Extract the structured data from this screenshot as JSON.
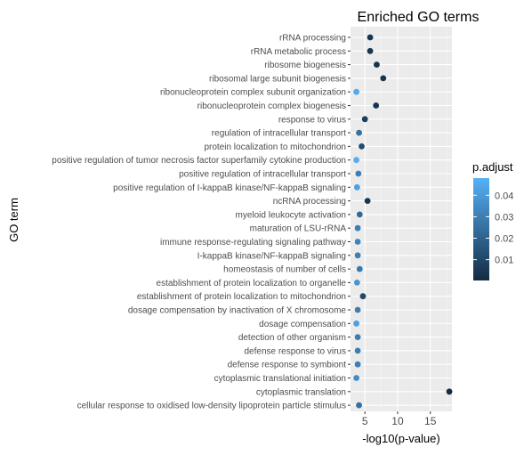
{
  "chart_data": {
    "type": "scatter",
    "title": "Enriched GO terms",
    "xlabel": "-log10(p-value)",
    "ylabel": "GO term",
    "xlim": [
      2.8,
      18.3
    ],
    "x_ticks": [
      5,
      10,
      15
    ],
    "grid": true,
    "legend": {
      "title": "p.adjust",
      "placement": "right",
      "ticks": [
        0.04,
        0.03,
        0.02,
        0.01
      ],
      "range": [
        0.0003,
        0.048
      ],
      "color_low": "#132B43",
      "color_high": "#56B1F7"
    },
    "points": [
      {
        "term": "rRNA processing",
        "x": 5.8,
        "p_adjust": 0.004
      },
      {
        "term": "rRNA metabolic process",
        "x": 5.8,
        "p_adjust": 0.004
      },
      {
        "term": "ribosome biogenesis",
        "x": 6.8,
        "p_adjust": 0.003
      },
      {
        "term": "ribosomal large subunit biogenesis",
        "x": 7.8,
        "p_adjust": 0.003
      },
      {
        "term": "ribonucleoprotein complex subunit organization",
        "x": 3.7,
        "p_adjust": 0.045
      },
      {
        "term": "ribonucleoprotein complex biogenesis",
        "x": 6.7,
        "p_adjust": 0.003
      },
      {
        "term": "response to virus",
        "x": 5.0,
        "p_adjust": 0.007
      },
      {
        "term": "regulation of intracellular transport",
        "x": 4.1,
        "p_adjust": 0.025
      },
      {
        "term": "protein localization to mitochondrion",
        "x": 4.5,
        "p_adjust": 0.012
      },
      {
        "term": "positive regulation of tumor necrosis factor superfamily cytokine production",
        "x": 3.7,
        "p_adjust": 0.047
      },
      {
        "term": "positive regulation of intracellular transport",
        "x": 4.0,
        "p_adjust": 0.03
      },
      {
        "term": "positive regulation of I-kappaB kinase/NF-kappaB signaling",
        "x": 3.8,
        "p_adjust": 0.042
      },
      {
        "term": "ncRNA processing",
        "x": 5.4,
        "p_adjust": 0.004
      },
      {
        "term": "myeloid leukocyte activation",
        "x": 4.2,
        "p_adjust": 0.022
      },
      {
        "term": "maturation of LSU-rRNA",
        "x": 3.9,
        "p_adjust": 0.03
      },
      {
        "term": "immune response-regulating signaling pathway",
        "x": 3.9,
        "p_adjust": 0.032
      },
      {
        "term": "I-kappaB kinase/NF-kappaB signaling",
        "x": 3.9,
        "p_adjust": 0.03
      },
      {
        "term": "homeostasis of number of cells",
        "x": 4.2,
        "p_adjust": 0.028
      },
      {
        "term": "establishment of protein localization to organelle",
        "x": 3.8,
        "p_adjust": 0.038
      },
      {
        "term": "establishment of protein localization to mitochondrion",
        "x": 4.7,
        "p_adjust": 0.01
      },
      {
        "term": "dosage compensation by inactivation of X chromosome",
        "x": 3.9,
        "p_adjust": 0.03
      },
      {
        "term": "dosage compensation",
        "x": 3.7,
        "p_adjust": 0.042
      },
      {
        "term": "detection of other organism",
        "x": 3.9,
        "p_adjust": 0.03
      },
      {
        "term": "defense response to virus",
        "x": 3.9,
        "p_adjust": 0.03
      },
      {
        "term": "defense response to symbiont",
        "x": 3.9,
        "p_adjust": 0.03
      },
      {
        "term": "cytoplasmic translational initiation",
        "x": 3.7,
        "p_adjust": 0.035
      },
      {
        "term": "cytoplasmic translation",
        "x": 17.9,
        "p_adjust": 0.0003
      },
      {
        "term": "cellular response to oxidised low-density lipoprotein particle stimulus",
        "x": 4.1,
        "p_adjust": 0.025
      }
    ]
  }
}
